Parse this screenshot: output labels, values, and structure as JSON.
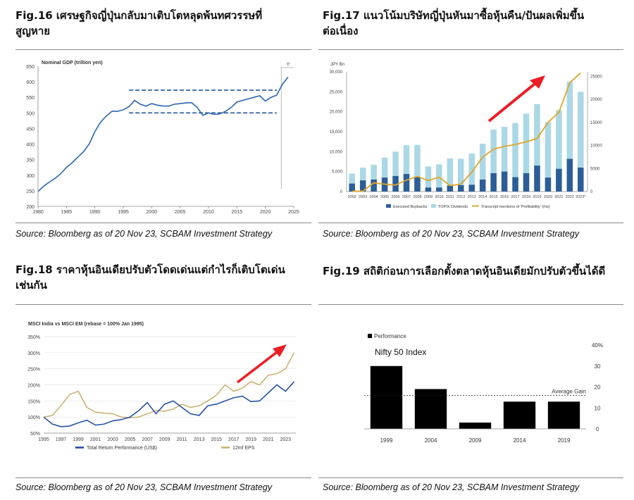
{
  "colors": {
    "japan_line": "#2a66b1",
    "dashed": "#2755a6",
    "buybacks": "#2c5d96",
    "dividends": "#abd8e6",
    "transcript": "#e0a528",
    "red_arrow": "#ee1c24",
    "india_line": "#1a47a6",
    "eps_line": "#c9ae6b",
    "bars": "#000000"
  },
  "fig16": {
    "title_line1": "Fig.16 เศรษฐกิจญี่ปุ่นกลับมาเติบโตหลุดพ้นทศวรรษที่",
    "title_line2": "สูญหาย",
    "source": "Source: Bloomberg as of 20 Nov 23, SCBAM Investment Strategy"
  },
  "fig17": {
    "title_line1": "Fig.17 แนวโน้มบริษัทญี่ปุ่นหันมาซื้อหุ้นคืน/ปันผลเพิ่มขึ้น",
    "title_line2": "ต่อเนื่อง",
    "source": "Source: Bloomberg as of 20 Nov 23, SCBAM Investment Strategy"
  },
  "fig18": {
    "title_line1": "Fig.18 ราคาหุ้นอินเดียปรับตัวโดดเด่นแต่กำไรก็เติบโตเด่น",
    "title_line2": "เช่นกัน",
    "source": "Source: Bloomberg as of 20 Nov 23, SCBAM Investment Strategy"
  },
  "fig19": {
    "title_line1": "Fig.19 สถิติก่อนการเลือกตั้งตลาดหุ้นอินเดียมักปรับตัวขึ้นได้ดี",
    "source": "Source: Bloomberg as of 20 Nov 23, SCBAM Investment Strategy"
  },
  "chart_data": [
    {
      "id": "fig16",
      "type": "line",
      "title": "Nominal GDP (trillion yen)",
      "xlabel": "",
      "ylabel": "",
      "xlim": [
        1980,
        2025
      ],
      "ylim": [
        200,
        650
      ],
      "x_ticks": [
        1980,
        1985,
        1990,
        1995,
        2000,
        2005,
        2010,
        2015,
        2020,
        2025
      ],
      "y_ticks": [
        200,
        250,
        300,
        350,
        400,
        450,
        500,
        550,
        600,
        650
      ],
      "estimate_marker": "e",
      "dashed_levels": [
        {
          "y": 573,
          "from": 1996,
          "to": 2022
        },
        {
          "y": 500,
          "from": 1996,
          "to": 2022
        }
      ],
      "series": [
        {
          "x": [
            1980,
            1981,
            1982,
            1983,
            1984,
            1985,
            1986,
            1987,
            1988,
            1989,
            1990,
            1991,
            1992,
            1993,
            1994,
            1995,
            1996,
            1997,
            1998,
            1999,
            2000,
            2001,
            2002,
            2003,
            2004,
            2005,
            2006,
            2007,
            2008,
            2009,
            2010,
            2011,
            2012,
            2013,
            2014,
            2015,
            2016,
            2017,
            2018,
            2019,
            2020,
            2021,
            2022,
            2023,
            2024
          ],
          "values": [
            248,
            265,
            278,
            290,
            305,
            325,
            340,
            358,
            375,
            400,
            440,
            470,
            490,
            505,
            505,
            510,
            520,
            540,
            528,
            522,
            530,
            525,
            522,
            522,
            528,
            530,
            532,
            533,
            518,
            492,
            500,
            495,
            497,
            505,
            518,
            535,
            540,
            545,
            550,
            555,
            538,
            550,
            557,
            592,
            615
          ]
        }
      ]
    },
    {
      "id": "fig17",
      "type": "bar",
      "title": "JPY Bn",
      "categories": [
        "2002",
        "2003",
        "2004",
        "2005",
        "2006",
        "2007",
        "2008",
        "2009",
        "2010",
        "2011",
        "2012",
        "2013",
        "2014",
        "2015",
        "2016",
        "2017",
        "2018",
        "2019",
        "2020",
        "2021",
        "2022",
        "2023*"
      ],
      "ylim": [
        0,
        30000
      ],
      "y_ticks": [
        0,
        5000,
        10000,
        15000,
        20000,
        25000,
        30000
      ],
      "y_tick_labels": [
        "0",
        "5,000",
        "10,000",
        "15,000",
        "20,000",
        "25,000",
        "30,000"
      ],
      "y2lim": [
        0,
        26000
      ],
      "y2_ticks": [
        0,
        5000,
        10000,
        15000,
        20000,
        25000
      ],
      "series": [
        {
          "name": "Executed Buybacks",
          "axis": "left",
          "values": [
            2000,
            2800,
            3000,
            3500,
            3900,
            4400,
            3600,
            1000,
            1000,
            1500,
            1600,
            1700,
            3000,
            4600,
            5000,
            3600,
            4600,
            6500,
            3500,
            5700,
            8200,
            6000
          ]
        },
        {
          "name": "TOPIX Dividends",
          "axis": "left",
          "values": [
            4500,
            6000,
            6700,
            8500,
            10000,
            11600,
            11700,
            6300,
            6800,
            8300,
            8200,
            9500,
            12000,
            15500,
            16200,
            17200,
            19500,
            21900,
            17400,
            20400,
            27500,
            25000
          ]
        },
        {
          "name": "Transcript mentions of 'Profitability' (rhs)",
          "axis": "right",
          "values": [
            50,
            100,
            1900,
            1600,
            1400,
            2500,
            3300,
            2400,
            3100,
            1300,
            1600,
            4200,
            7500,
            9200,
            9800,
            10200,
            10800,
            11500,
            15000,
            17200,
            23600,
            25800
          ]
        }
      ]
    },
    {
      "id": "fig18",
      "type": "line",
      "title": "MSCI India vs MSCI EM (rebase = 100% Jan 1995)",
      "xlim": [
        1995,
        2024.2
      ],
      "ylim": [
        50,
        350
      ],
      "y_ticks": [
        50,
        100,
        150,
        200,
        250,
        300,
        350
      ],
      "y_tick_labels": [
        "50%",
        "100%",
        "150%",
        "200%",
        "250%",
        "300%",
        "350%"
      ],
      "x_ticks": [
        1995,
        1997,
        1999,
        2001,
        2003,
        2005,
        2007,
        2009,
        2011,
        2013,
        2015,
        2017,
        2019,
        2021,
        2023
      ],
      "series": [
        {
          "name": "Total Return Performance (US$)",
          "x": [
            1995,
            1996,
            1997,
            1998,
            1999,
            2000,
            2001,
            2002,
            2003,
            2004,
            2005,
            2006,
            2007,
            2008,
            2009,
            2010,
            2011,
            2012,
            2013,
            2014,
            2015,
            2016,
            2017,
            2018,
            2019,
            2020,
            2021,
            2022,
            2023,
            2024
          ],
          "values": [
            100,
            78,
            70,
            72,
            82,
            90,
            75,
            78,
            88,
            92,
            100,
            120,
            145,
            110,
            140,
            150,
            130,
            110,
            105,
            135,
            140,
            150,
            160,
            165,
            148,
            150,
            175,
            200,
            180,
            210
          ]
        },
        {
          "name": "12mf EPS",
          "x": [
            1995,
            1996,
            1997,
            1998,
            1999,
            2000,
            2001,
            2002,
            2003,
            2004,
            2005,
            2006,
            2007,
            2008,
            2009,
            2010,
            2011,
            2012,
            2013,
            2014,
            2015,
            2016,
            2017,
            2018,
            2019,
            2020,
            2021,
            2022,
            2023,
            2024
          ],
          "values": [
            100,
            105,
            135,
            170,
            180,
            130,
            115,
            112,
            110,
            100,
            98,
            100,
            110,
            120,
            118,
            125,
            140,
            130,
            135,
            150,
            168,
            200,
            180,
            190,
            210,
            200,
            230,
            235,
            250,
            300
          ]
        }
      ]
    },
    {
      "id": "fig19",
      "type": "bar",
      "title": "Nifty 50 Index",
      "legend": "Performance",
      "categories": [
        "1999",
        "2004",
        "2009",
        "2014",
        "2019"
      ],
      "values": [
        30,
        19,
        3,
        13,
        13
      ],
      "ylim": [
        0,
        40
      ],
      "y_ticks": [
        0,
        10,
        20,
        30,
        40
      ],
      "y_tick_labels": [
        "0",
        "10",
        "20",
        "30",
        "40%"
      ],
      "reference_line": {
        "label": "Average Gain",
        "value": 16
      }
    }
  ]
}
